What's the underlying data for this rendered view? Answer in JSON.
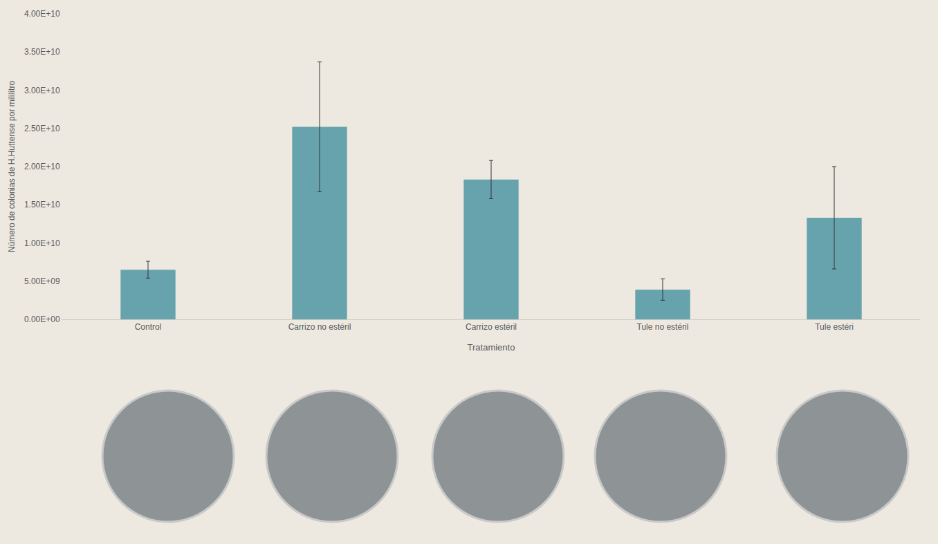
{
  "chart_data": {
    "type": "bar",
    "x_label": "Tratamiento",
    "y_label": "Número de colonias de H.Huttense por mililitro",
    "categories": [
      "Control",
      "Carrizo no estéril",
      "Carrizo estéril",
      "Tule no estéril",
      "Tule estéri"
    ],
    "values": [
      6500000000,
      25200000000,
      18300000000,
      3900000000,
      13300000000
    ],
    "error": [
      1100000000,
      8500000000,
      2500000000,
      1400000000,
      6700000000
    ],
    "color": "#67a3ad",
    "ylim": [
      0,
      40000000000
    ],
    "yticks": [
      {
        "value": 0,
        "label": "0.00E+00"
      },
      {
        "value": 5000000000,
        "label": "5.00E+09"
      },
      {
        "value": 10000000000,
        "label": "1.00E+10"
      },
      {
        "value": 15000000000,
        "label": "1.50E+10"
      },
      {
        "value": 20000000000,
        "label": "2.00E+10"
      },
      {
        "value": 25000000000,
        "label": "2.50E+10"
      },
      {
        "value": 30000000000,
        "label": "3.00E+10"
      },
      {
        "value": 35000000000,
        "label": "3.50E+10"
      },
      {
        "value": 40000000000,
        "label": "4.00E+10"
      }
    ],
    "grid": false
  }
}
